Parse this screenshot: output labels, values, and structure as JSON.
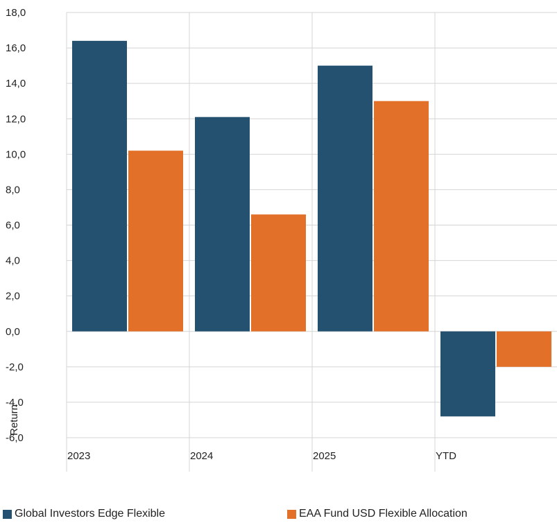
{
  "chart_data": {
    "type": "bar",
    "categories": [
      "2023",
      "2024",
      "2025",
      "YTD"
    ],
    "series": [
      {
        "name": "Global Investors Edge Flexible",
        "color": "#255170",
        "values": [
          16.4,
          12.1,
          15.0,
          -4.8
        ]
      },
      {
        "name": "EAA Fund USD Flexible Allocation",
        "color": "#E27028",
        "values": [
          10.2,
          6.6,
          13.0,
          -2.0
        ]
      }
    ],
    "ylabel": "Return",
    "ylim": [
      -6.0,
      18.0
    ],
    "yticks": [
      "18,0",
      "16,0",
      "14,0",
      "12,0",
      "10,0",
      "8,0",
      "6,0",
      "4,0",
      "2,0",
      "0,0",
      "-2,0",
      "-4,0",
      "-6,0"
    ],
    "ytick_values": [
      18,
      16,
      14,
      12,
      10,
      8,
      6,
      4,
      2,
      0,
      -2,
      -4,
      -6
    ],
    "grid": true,
    "legend_position": "bottom"
  }
}
